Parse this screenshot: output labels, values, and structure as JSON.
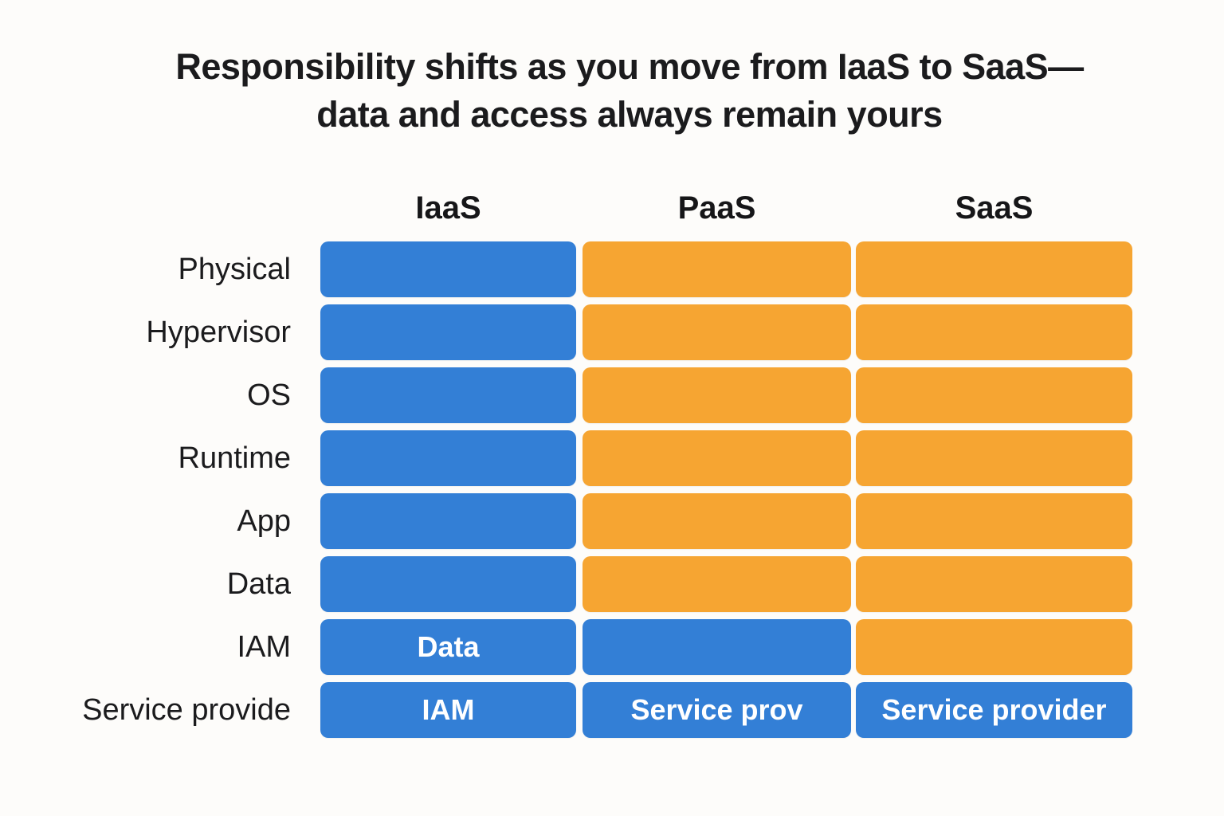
{
  "title": {
    "line1": "Responsibility shifts as you move from IaaS to SaaS—",
    "line2": "data and access always remain yours"
  },
  "colors": {
    "background": "#fdfcfa",
    "blue": "#337fd6",
    "orange": "#f6a532",
    "heading_text": "#1b1b1d",
    "cell_text": "#ffffff"
  },
  "chart_data": {
    "type": "heatmap",
    "title": "Responsibility shifts as you move from IaaS to SaaS—data and access always remain yours",
    "columns": [
      "IaaS",
      "PaaS",
      "SaaS"
    ],
    "legend": "none",
    "rows": [
      {
        "label": "Physical",
        "cells": [
          {
            "color": "blue",
            "text": ""
          },
          {
            "color": "orange",
            "text": ""
          },
          {
            "color": "orange",
            "text": ""
          }
        ]
      },
      {
        "label": "Hypervisor",
        "cells": [
          {
            "color": "blue",
            "text": ""
          },
          {
            "color": "orange",
            "text": ""
          },
          {
            "color": "orange",
            "text": ""
          }
        ]
      },
      {
        "label": "OS",
        "cells": [
          {
            "color": "blue",
            "text": ""
          },
          {
            "color": "orange",
            "text": ""
          },
          {
            "color": "orange",
            "text": ""
          }
        ]
      },
      {
        "label": "Runtime",
        "cells": [
          {
            "color": "blue",
            "text": ""
          },
          {
            "color": "orange",
            "text": ""
          },
          {
            "color": "orange",
            "text": ""
          }
        ]
      },
      {
        "label": "App",
        "cells": [
          {
            "color": "blue",
            "text": ""
          },
          {
            "color": "orange",
            "text": ""
          },
          {
            "color": "orange",
            "text": ""
          }
        ]
      },
      {
        "label": "Data",
        "cells": [
          {
            "color": "blue",
            "text": ""
          },
          {
            "color": "orange",
            "text": ""
          },
          {
            "color": "orange",
            "text": ""
          }
        ]
      },
      {
        "label": "IAM",
        "cells": [
          {
            "color": "blue",
            "text": "Data"
          },
          {
            "color": "blue",
            "text": ""
          },
          {
            "color": "orange",
            "text": ""
          }
        ]
      },
      {
        "label": "Service provide",
        "cells": [
          {
            "color": "blue",
            "text": "IAM"
          },
          {
            "color": "blue",
            "text": "Service prov"
          },
          {
            "color": "blue",
            "text": "Service provider"
          }
        ]
      }
    ]
  }
}
